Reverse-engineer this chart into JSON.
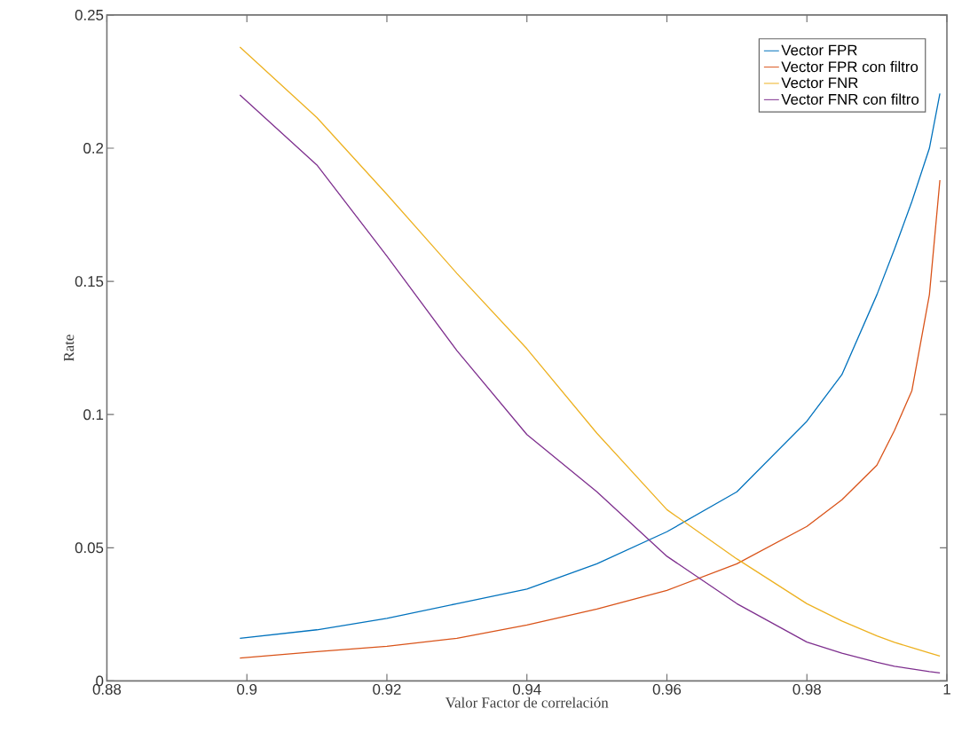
{
  "chart_data": {
    "type": "line",
    "xlabel": "Valor Factor de correlación",
    "ylabel": "Rate",
    "xlim": [
      0.88,
      1
    ],
    "xticks": [
      0.88,
      0.9,
      0.92,
      0.94,
      0.96,
      0.98,
      1
    ],
    "ylim": [
      0,
      0.25
    ],
    "yticks": [
      0,
      0.05,
      0.1,
      0.15,
      0.2,
      0.25
    ],
    "x": [
      0.899,
      0.91,
      0.92,
      0.93,
      0.94,
      0.95,
      0.96,
      0.97,
      0.98,
      0.985,
      0.99,
      0.9925,
      0.995,
      0.9975,
      0.999
    ],
    "legend": "top right",
    "line_style": "solid",
    "marker": "none",
    "grid": false,
    "series": [
      {
        "name": "Vector FPR",
        "color": "#0072bd",
        "values": [
          0.016,
          0.0192,
          0.0235,
          0.029,
          0.0345,
          0.044,
          0.056,
          0.071,
          0.0975,
          0.115,
          0.145,
          0.162,
          0.18,
          0.2,
          0.2205
        ]
      },
      {
        "name": "Vector FPR con filtro",
        "color": "#d95319",
        "values": [
          0.0086,
          0.011,
          0.013,
          0.016,
          0.021,
          0.027,
          0.034,
          0.044,
          0.058,
          0.068,
          0.081,
          0.094,
          0.109,
          0.145,
          0.188
        ]
      },
      {
        "name": "Vector FNR",
        "color": "#edb120",
        "values": [
          0.238,
          0.2115,
          0.1827,
          0.153,
          0.1247,
          0.093,
          0.0643,
          0.0458,
          0.029,
          0.0225,
          0.0169,
          0.0145,
          0.0125,
          0.0105,
          0.0093
        ]
      },
      {
        "name": "Vector FNR con filtro",
        "color": "#7e2f8e",
        "values": [
          0.22,
          0.1937,
          0.1595,
          0.124,
          0.0925,
          0.071,
          0.0468,
          0.029,
          0.0146,
          0.0104,
          0.007,
          0.0055,
          0.0045,
          0.0035,
          0.003
        ]
      }
    ]
  }
}
